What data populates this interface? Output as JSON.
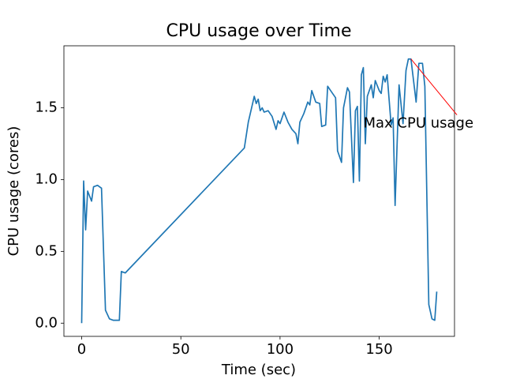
{
  "chart_data": {
    "type": "line",
    "title": "CPU usage over Time",
    "xlabel": "Time (sec)",
    "ylabel": "CPU usage (cores)",
    "color": "#1f77b4",
    "x": [
      0,
      1,
      2,
      3,
      5,
      6,
      8,
      10,
      12,
      14,
      16,
      19,
      20,
      22,
      82,
      84,
      86,
      87,
      88,
      89,
      90,
      91,
      92,
      94,
      96,
      98,
      99,
      100,
      102,
      104,
      106,
      108,
      109,
      110,
      112,
      114,
      115,
      116,
      118,
      120,
      121,
      123,
      124,
      126,
      128,
      129,
      131,
      132,
      134,
      135,
      137,
      138,
      139,
      140,
      141,
      142,
      143,
      144,
      146,
      147,
      148,
      150,
      151,
      152,
      153,
      154,
      156,
      157,
      158,
      160,
      162,
      163.5,
      164.7,
      166,
      168.6,
      170,
      171.8,
      173,
      175,
      176.6,
      178,
      179
    ],
    "values": [
      0.0,
      0.99,
      0.65,
      0.92,
      0.85,
      0.95,
      0.96,
      0.94,
      0.09,
      0.03,
      0.02,
      0.02,
      0.36,
      0.35,
      1.22,
      1.4,
      1.52,
      1.58,
      1.53,
      1.56,
      1.48,
      1.5,
      1.47,
      1.48,
      1.44,
      1.35,
      1.41,
      1.39,
      1.47,
      1.4,
      1.35,
      1.32,
      1.25,
      1.4,
      1.46,
      1.54,
      1.52,
      1.62,
      1.54,
      1.53,
      1.37,
      1.38,
      1.65,
      1.61,
      1.57,
      1.2,
      1.12,
      1.5,
      1.64,
      1.61,
      0.98,
      1.48,
      1.51,
      0.99,
      1.73,
      1.78,
      1.25,
      1.58,
      1.66,
      1.57,
      1.69,
      1.62,
      1.6,
      1.72,
      1.68,
      1.73,
      1.38,
      1.43,
      0.82,
      1.66,
      1.39,
      1.76,
      1.84,
      1.84,
      1.54,
      1.81,
      1.81,
      1.65,
      0.13,
      0.03,
      0.02,
      0.22
    ],
    "xlim": [
      -8.95,
      187.95
    ],
    "ylim": [
      -0.092,
      1.932
    ],
    "xticks": [
      0,
      50,
      100,
      150
    ],
    "yticks": [
      {
        "value": 0,
        "label": "0.0"
      },
      0.5,
      {
        "value": 1,
        "label": "1.0"
      },
      1.5
    ],
    "annotation": {
      "text": "Max CPU usage",
      "color": "#ff0000",
      "x": 166,
      "y": 1.84,
      "text_x": 142,
      "text_y": 1.39
    }
  }
}
